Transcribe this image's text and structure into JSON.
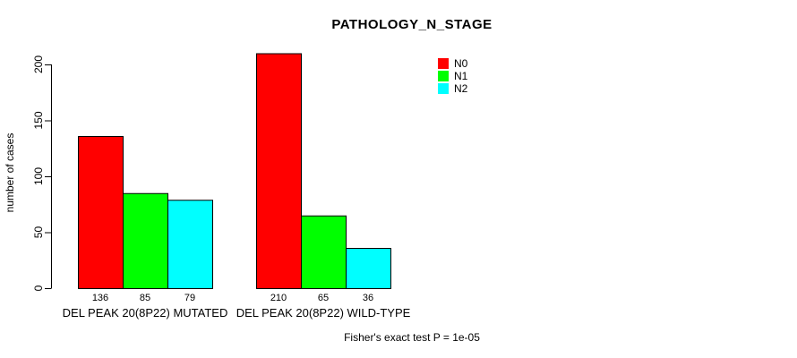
{
  "title": "PATHOLOGY_N_STAGE",
  "y_axis_label": "number of cases",
  "footer": "Fisher's exact test P = 1e-05",
  "colors": {
    "background": "#ffffff",
    "bar_border": "#000000",
    "text": "#000000",
    "series": [
      "#ff0000",
      "#00ff00",
      "#00ffff"
    ]
  },
  "legend": {
    "position": "top-right",
    "items": [
      {
        "label": "N0",
        "color": "#ff0000"
      },
      {
        "label": "N1",
        "color": "#00ff00"
      },
      {
        "label": "N2",
        "color": "#00ffff"
      }
    ]
  },
  "chart_data": {
    "type": "bar",
    "title": "PATHOLOGY_N_STAGE",
    "ylabel": "number of cases",
    "xlabel": "",
    "ylim": [
      0,
      210
    ],
    "y_ticks": [
      0,
      50,
      100,
      150,
      200
    ],
    "grid": false,
    "legend_position": "top-right",
    "series_names": [
      "N0",
      "N1",
      "N2"
    ],
    "groups": [
      {
        "label": "DEL PEAK 20(8P22) MUTATED",
        "values": [
          136,
          85,
          79
        ]
      },
      {
        "label": "DEL PEAK 20(8P22) WILD-TYPE",
        "values": [
          210,
          65,
          36
        ]
      }
    ],
    "bar_value_labels": [
      [
        136,
        85,
        79
      ],
      [
        210,
        65,
        36
      ]
    ],
    "annotation": "Fisher's exact test P = 1e-05"
  }
}
